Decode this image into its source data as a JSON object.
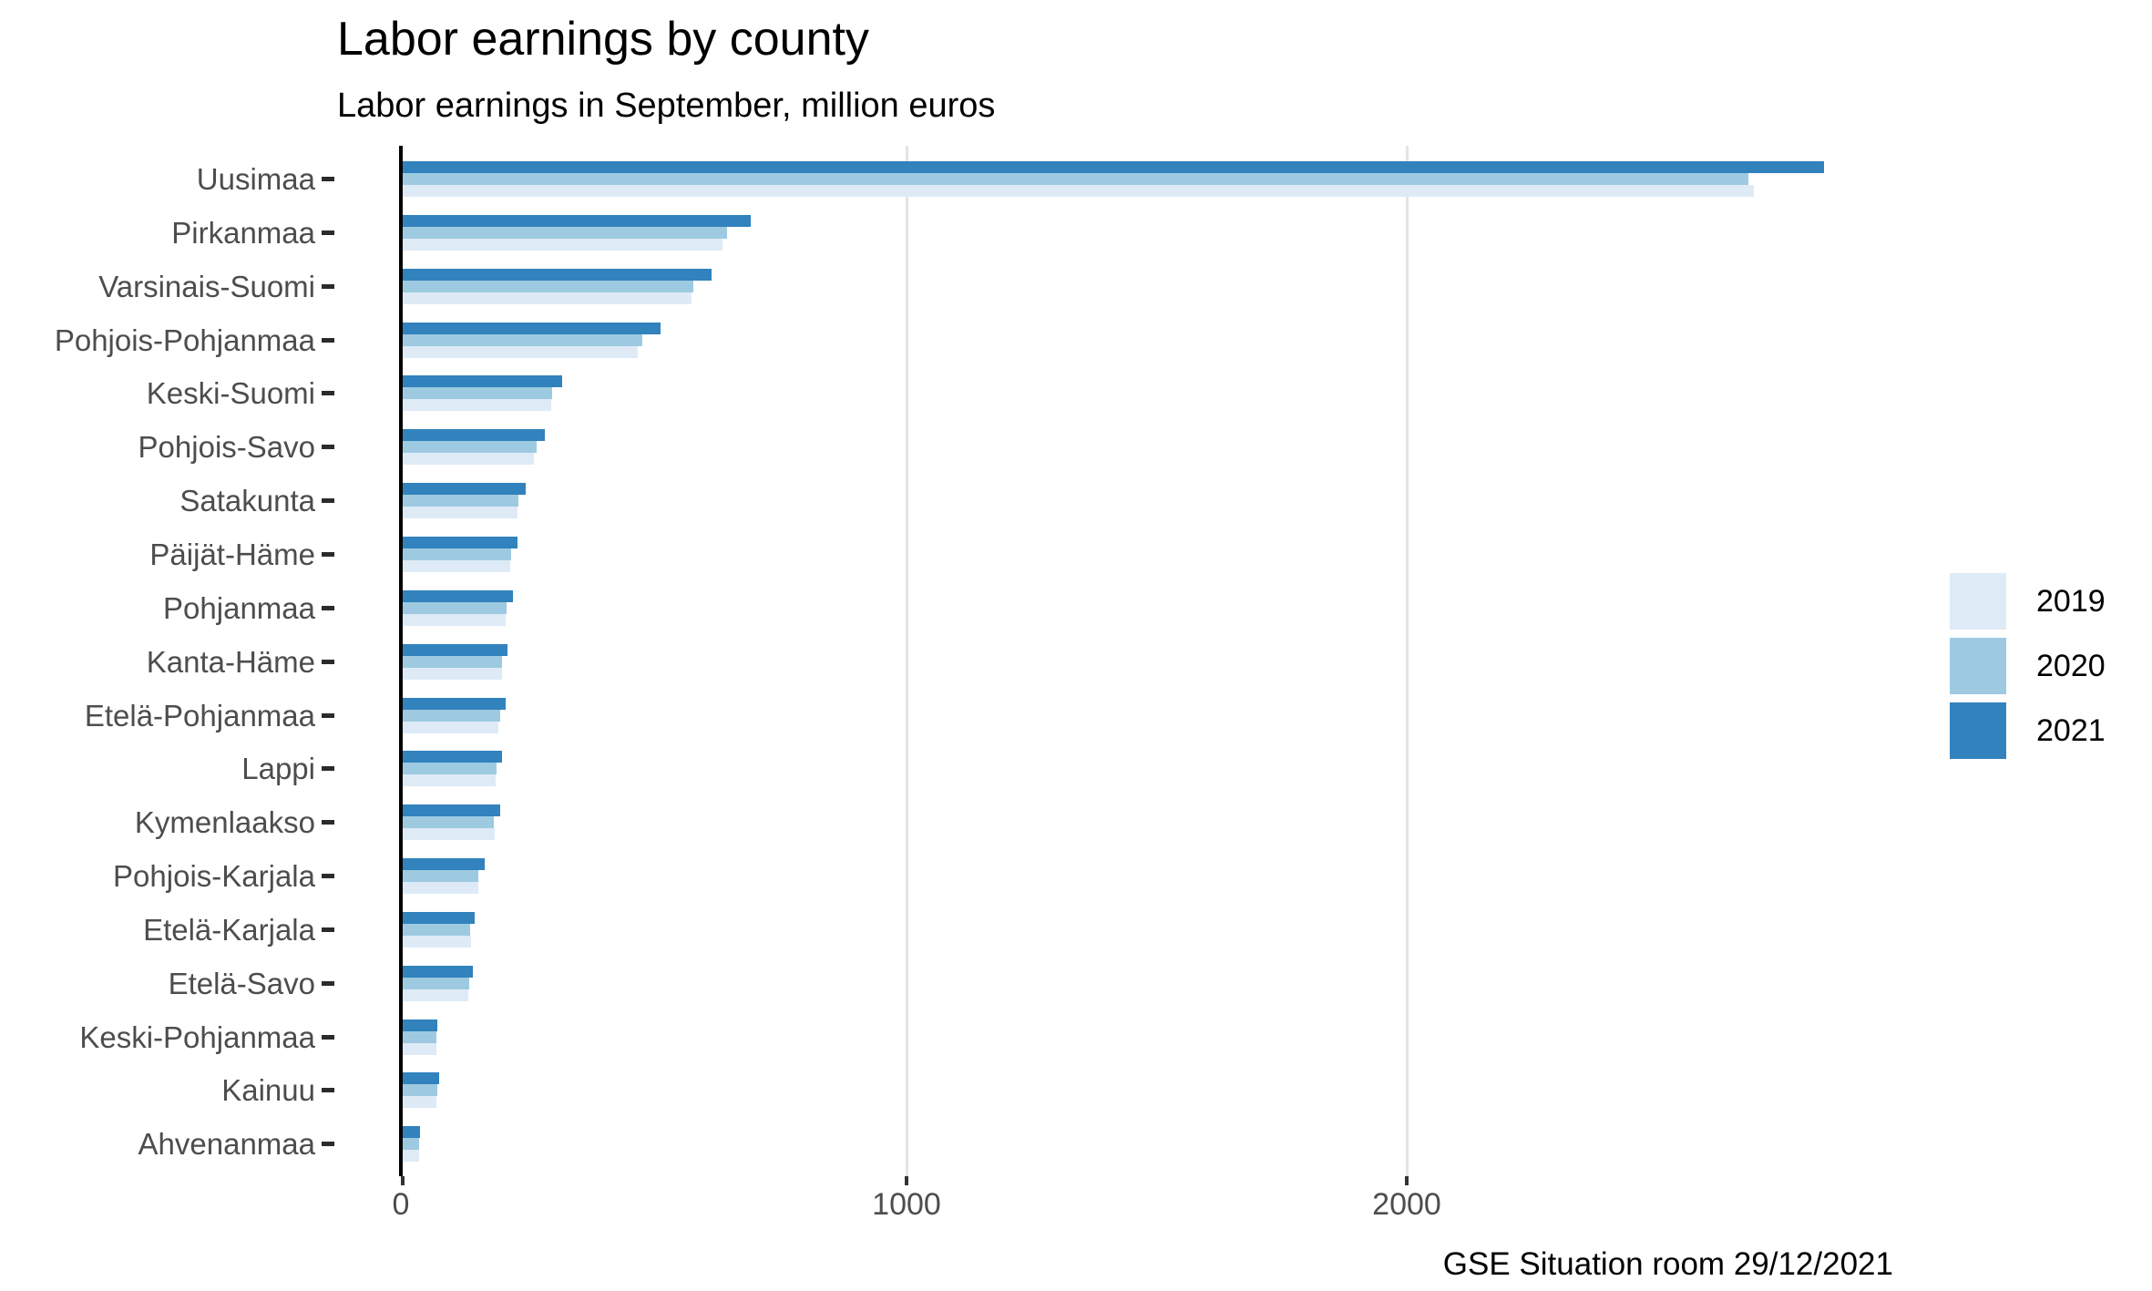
{
  "chart_data": {
    "type": "bar",
    "orientation": "horizontal",
    "title": "Labor earnings by county",
    "subtitle": "Labor earnings in September, million euros",
    "caption": "GSE Situation room 29/12/2021",
    "xlabel": "",
    "ylabel": "",
    "x_ticks": [
      0,
      1000,
      2000
    ],
    "x_tick_labels": [
      "0",
      "1000",
      "2000"
    ],
    "xlim": [
      0,
      3480
    ],
    "grid": "vertical-major-only",
    "legend_position": "right",
    "bar_order_top_to_bottom": [
      "2021",
      "2020",
      "2019"
    ],
    "categories": [
      "Uusimaa",
      "Pirkanmaa",
      "Varsinais-Suomi",
      "Pohjois-Pohjanmaa",
      "Keski-Suomi",
      "Pohjois-Savo",
      "Satakunta",
      "Päijät-Häme",
      "Pohjanmaa",
      "Kanta-Häme",
      "Etelä-Pohjanmaa",
      "Lappi",
      "Kymenlaakso",
      "Pohjois-Karjala",
      "Etelä-Karjala",
      "Etelä-Savo",
      "Keski-Pohjanmaa",
      "Kainuu",
      "Ahvenanmaa"
    ],
    "series": [
      {
        "name": "2019",
        "color": "#deebf7",
        "values": [
          2700,
          640,
          578,
          470,
          296,
          263,
          230,
          215,
          205,
          198,
          192,
          186,
          183,
          151,
          136,
          131,
          67,
          68,
          32
        ]
      },
      {
        "name": "2020",
        "color": "#9ecae1",
        "values": [
          2690,
          648,
          580,
          478,
          298,
          267,
          231,
          216,
          207,
          199,
          194,
          188,
          182,
          152,
          134,
          133,
          67,
          70,
          33
        ]
      },
      {
        "name": "2021",
        "color": "#3182bd",
        "values": [
          2840,
          696,
          618,
          516,
          318,
          284,
          245,
          229,
          220,
          210,
          205,
          199,
          194,
          164,
          144,
          140,
          70,
          72,
          34
        ]
      }
    ]
  },
  "legend": {
    "entries": [
      {
        "label": "2019",
        "color": "#deebf7"
      },
      {
        "label": "2020",
        "color": "#9ecae1"
      },
      {
        "label": "2021",
        "color": "#3182bd"
      }
    ]
  }
}
